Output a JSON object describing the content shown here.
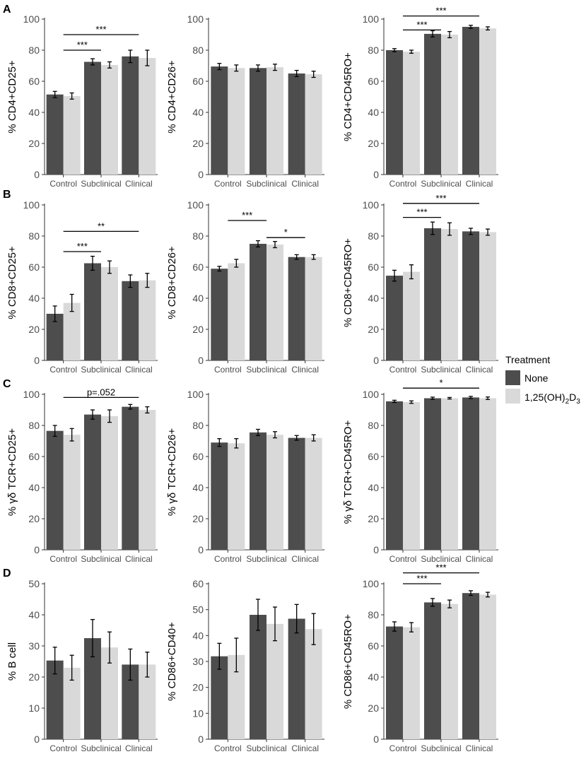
{
  "legend": {
    "title": "Treatment",
    "items": [
      {
        "label": "None",
        "color": "#4d4d4d"
      },
      {
        "label_main": "1,25(OH)",
        "label_sub1": "2",
        "label_mid": "D",
        "label_sub2": "3",
        "color": "#d9d9d9"
      }
    ]
  },
  "chart_data": [
    {
      "type": "bar",
      "panel": "A",
      "ylabel": "% CD4+CD25+",
      "categories": [
        "Control",
        "Subclinical",
        "Clinical"
      ],
      "ylim": [
        0,
        100
      ],
      "yticks": [
        0,
        20,
        40,
        60,
        80,
        100
      ],
      "series": [
        {
          "name": "None",
          "values": [
            51.5,
            72.5,
            76
          ],
          "errors": [
            2,
            2,
            4
          ]
        },
        {
          "name": "1,25(OH)2D3",
          "values": [
            50.5,
            70.5,
            75
          ],
          "errors": [
            2,
            2,
            5
          ]
        }
      ],
      "annotations": [
        {
          "from": 0,
          "to": 1,
          "label": "***",
          "y": 80
        },
        {
          "from": 0,
          "to": 2,
          "label": "***",
          "y": 90
        }
      ]
    },
    {
      "type": "bar",
      "panel": "",
      "ylabel": "% CD4+CD26+",
      "categories": [
        "Control",
        "Subclinical",
        "Clinical"
      ],
      "ylim": [
        0,
        100
      ],
      "yticks": [
        0,
        20,
        40,
        60,
        80,
        100
      ],
      "series": [
        {
          "name": "None",
          "values": [
            69.5,
            68.5,
            65
          ],
          "errors": [
            2,
            2,
            2
          ]
        },
        {
          "name": "1,25(OH)2D3",
          "values": [
            68.5,
            69,
            64.5
          ],
          "errors": [
            2,
            2,
            2
          ]
        }
      ],
      "annotations": []
    },
    {
      "type": "bar",
      "panel": "",
      "ylabel": "% CD4+CD45RO+",
      "categories": [
        "Control",
        "Subclinical",
        "Clinical"
      ],
      "ylim": [
        0,
        100
      ],
      "yticks": [
        0,
        20,
        40,
        60,
        80,
        100
      ],
      "series": [
        {
          "name": "None",
          "values": [
            80,
            90.5,
            95
          ],
          "errors": [
            1,
            2,
            1
          ]
        },
        {
          "name": "1,25(OH)2D3",
          "values": [
            79,
            90,
            94
          ],
          "errors": [
            1,
            2,
            1
          ]
        }
      ],
      "annotations": [
        {
          "from": 0,
          "to": 1,
          "label": "***",
          "y": 93
        },
        {
          "from": 0,
          "to": 2,
          "label": "***",
          "y": 102
        }
      ]
    },
    {
      "type": "bar",
      "panel": "B",
      "ylabel": "% CD8+CD25+",
      "categories": [
        "Control",
        "Subclinical",
        "Clinical"
      ],
      "ylim": [
        0,
        100
      ],
      "yticks": [
        0,
        20,
        40,
        60,
        80,
        100
      ],
      "series": [
        {
          "name": "None",
          "values": [
            30,
            62.5,
            51
          ],
          "errors": [
            5,
            4.5,
            4
          ]
        },
        {
          "name": "1,25(OH)2D3",
          "values": [
            37,
            60,
            51.5
          ],
          "errors": [
            5.5,
            4,
            4.5
          ]
        }
      ],
      "annotations": [
        {
          "from": 0,
          "to": 1,
          "label": "***",
          "y": 70
        },
        {
          "from": 0,
          "to": 2,
          "label": "**",
          "y": 83
        }
      ]
    },
    {
      "type": "bar",
      "panel": "",
      "ylabel": "% CD8+CD26+",
      "categories": [
        "Control",
        "Subclinical",
        "Clinical"
      ],
      "ylim": [
        0,
        100
      ],
      "yticks": [
        0,
        20,
        40,
        60,
        80,
        100
      ],
      "series": [
        {
          "name": "None",
          "values": [
            59,
            75,
            66.5
          ],
          "errors": [
            1.5,
            2,
            1.5
          ]
        },
        {
          "name": "1,25(OH)2D3",
          "values": [
            62.5,
            74.5,
            66.5
          ],
          "errors": [
            2.5,
            2,
            1.5
          ]
        }
      ],
      "annotations": [
        {
          "from": 0,
          "to": 1,
          "label": "***",
          "y": 90
        },
        {
          "from": 1,
          "to": 2,
          "label": "*",
          "y": 79
        }
      ]
    },
    {
      "type": "bar",
      "panel": "",
      "ylabel": "% CD8+CD45RO+",
      "categories": [
        "Control",
        "Subclinical",
        "Clinical"
      ],
      "ylim": [
        0,
        100
      ],
      "yticks": [
        0,
        20,
        40,
        60,
        80,
        100
      ],
      "series": [
        {
          "name": "None",
          "values": [
            54.5,
            85,
            83
          ],
          "errors": [
            3.5,
            4,
            2
          ]
        },
        {
          "name": "1,25(OH)2D3",
          "values": [
            57,
            84.5,
            82.5
          ],
          "errors": [
            4.5,
            4,
            2
          ]
        }
      ],
      "annotations": [
        {
          "from": 0,
          "to": 1,
          "label": "***",
          "y": 92
        },
        {
          "from": 0,
          "to": 2,
          "label": "***",
          "y": 101
        }
      ]
    },
    {
      "type": "bar",
      "panel": "C",
      "ylabel": "% γδ TCR+CD25+",
      "categories": [
        "Control",
        "Subclinical",
        "Clinical"
      ],
      "ylim": [
        0,
        100
      ],
      "yticks": [
        0,
        20,
        40,
        60,
        80,
        100
      ],
      "series": [
        {
          "name": "None",
          "values": [
            76.5,
            87,
            92
          ],
          "errors": [
            3.5,
            3,
            1.5
          ]
        },
        {
          "name": "1,25(OH)2D3",
          "values": [
            74,
            86,
            90
          ],
          "errors": [
            4,
            4,
            2
          ]
        }
      ],
      "annotations": [
        {
          "from": 0,
          "to": 2,
          "label": "p=.052",
          "y": 98
        }
      ]
    },
    {
      "type": "bar",
      "panel": "",
      "ylabel": "% γδ TCR+CD26+",
      "categories": [
        "Control",
        "Subclinical",
        "Clinical"
      ],
      "ylim": [
        0,
        100
      ],
      "yticks": [
        0,
        20,
        40,
        60,
        80,
        100
      ],
      "series": [
        {
          "name": "None",
          "values": [
            69,
            75.5,
            72
          ],
          "errors": [
            2.5,
            2,
            1.5
          ]
        },
        {
          "name": "1,25(OH)2D3",
          "values": [
            68.5,
            74,
            72
          ],
          "errors": [
            3,
            2,
            2
          ]
        }
      ],
      "annotations": []
    },
    {
      "type": "bar",
      "panel": "",
      "ylabel": "% γδ TCR+CD45RO+",
      "categories": [
        "Control",
        "Subclinical",
        "Clinical"
      ],
      "ylim": [
        0,
        100
      ],
      "yticks": [
        0,
        20,
        40,
        60,
        80,
        100
      ],
      "series": [
        {
          "name": "None",
          "values": [
            95.5,
            97.5,
            98
          ],
          "errors": [
            0.7,
            0.7,
            0.7
          ]
        },
        {
          "name": "1,25(OH)2D3",
          "values": [
            95,
            97.5,
            97.5
          ],
          "errors": [
            0.8,
            0.5,
            0.8
          ]
        }
      ],
      "annotations": [
        {
          "from": 0,
          "to": 2,
          "label": "*",
          "y": 104
        }
      ]
    },
    {
      "type": "bar",
      "panel": "D",
      "ylabel": "% B cell",
      "categories": [
        "Control",
        "Subclinical",
        "Clinical"
      ],
      "ylim": [
        0,
        50
      ],
      "yticks": [
        0,
        10,
        20,
        30,
        40,
        50
      ],
      "series": [
        {
          "name": "None",
          "values": [
            25.3,
            32.5,
            24
          ],
          "errors": [
            4.3,
            6,
            5
          ]
        },
        {
          "name": "1,25(OH)2D3",
          "values": [
            23,
            29.5,
            24
          ],
          "errors": [
            4,
            5,
            4
          ]
        }
      ],
      "annotations": []
    },
    {
      "type": "bar",
      "panel": "",
      "ylabel": "% CD86+CD40+",
      "categories": [
        "Control",
        "Subclinical",
        "Clinical"
      ],
      "ylim": [
        0,
        60
      ],
      "yticks": [
        0,
        10,
        20,
        30,
        40,
        50,
        60
      ],
      "series": [
        {
          "name": "None",
          "values": [
            32,
            48,
            46.5
          ],
          "errors": [
            5,
            6,
            5.5
          ]
        },
        {
          "name": "1,25(OH)2D3",
          "values": [
            32.5,
            44.5,
            42.5
          ],
          "errors": [
            6.5,
            6.5,
            6
          ]
        }
      ],
      "annotations": []
    },
    {
      "type": "bar",
      "panel": "",
      "ylabel": "% CD86+CD45RO+",
      "categories": [
        "Control",
        "Subclinical",
        "Clinical"
      ],
      "ylim": [
        0,
        100
      ],
      "yticks": [
        0,
        20,
        40,
        60,
        80,
        100
      ],
      "series": [
        {
          "name": "None",
          "values": [
            72.5,
            88,
            94
          ],
          "errors": [
            3,
            2.5,
            1.5
          ]
        },
        {
          "name": "1,25(OH)2D3",
          "values": [
            72,
            87,
            93
          ],
          "errors": [
            3,
            2.5,
            1.5
          ]
        }
      ],
      "annotations": [
        {
          "from": 0,
          "to": 1,
          "label": "***",
          "y": 100
        },
        {
          "from": 0,
          "to": 2,
          "label": "***",
          "y": 107
        }
      ]
    }
  ]
}
